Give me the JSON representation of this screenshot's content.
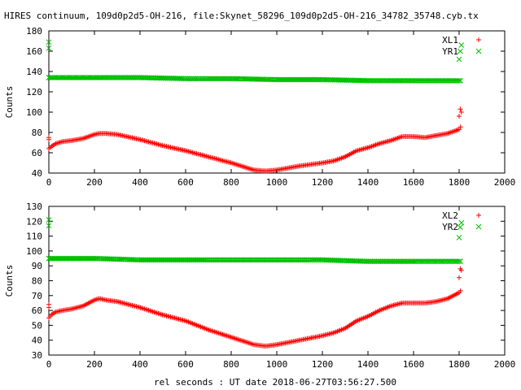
{
  "title": "HIRES continuum, 109d0p2d5-OH-216, file:Skynet_58296_109d0p2d5-OH-216_34782_35748.cyb.tx",
  "xlabel": "rel seconds : UT date 2018-06-27T03:56:27.500",
  "colors": {
    "xl": "#ff0000",
    "yr": "#00c000",
    "axis": "#000000"
  },
  "chart_data": [
    {
      "type": "scatter",
      "xlim": [
        0,
        2000
      ],
      "ylim": [
        40,
        180
      ],
      "xticks": [
        0,
        200,
        400,
        600,
        800,
        1000,
        1200,
        1400,
        1600,
        1800,
        2000
      ],
      "yticks": [
        40,
        60,
        80,
        100,
        120,
        140,
        160,
        180
      ],
      "ylabel": "Counts",
      "legend_position": "top-right",
      "series": [
        {
          "name": "XL1",
          "marker": "+",
          "color": "#ff0000",
          "x": [
            0,
            10,
            30,
            60,
            100,
            150,
            200,
            220,
            250,
            300,
            400,
            500,
            600,
            700,
            800,
            900,
            950,
            1000,
            1100,
            1200,
            1250,
            1300,
            1350,
            1400,
            1450,
            1500,
            1550,
            1600,
            1650,
            1700,
            1750,
            1800,
            1810
          ],
          "y": [
            64,
            66,
            69,
            71,
            72,
            74,
            78,
            79,
            79,
            78,
            73,
            67,
            62,
            56,
            50,
            43,
            42,
            43,
            47,
            50,
            52,
            56,
            62,
            65,
            69,
            72,
            76,
            76,
            75,
            77,
            79,
            83,
            87
          ],
          "outliers": {
            "x": [
              0,
              0,
              1800,
              1805,
              1810
            ],
            "y": [
              73,
              75,
              96,
              103,
              100
            ]
          }
        },
        {
          "name": "YR1",
          "marker": "x",
          "color": "#00c000",
          "x": [
            0,
            200,
            400,
            600,
            800,
            1000,
            1200,
            1400,
            1600,
            1810
          ],
          "y": [
            134,
            134,
            134,
            133,
            133,
            132,
            132,
            131,
            131,
            131
          ],
          "outliers": {
            "x": [
              0,
              0,
              1800,
              1805,
              1810
            ],
            "y": [
              169,
              163,
              152,
              160,
              166
            ]
          }
        }
      ]
    },
    {
      "type": "scatter",
      "xlim": [
        0,
        2000
      ],
      "ylim": [
        30,
        130
      ],
      "xticks": [
        0,
        200,
        400,
        600,
        800,
        1000,
        1200,
        1400,
        1600,
        1800,
        2000
      ],
      "yticks": [
        30,
        40,
        50,
        60,
        70,
        80,
        90,
        100,
        110,
        120,
        130
      ],
      "ylabel": "Counts",
      "legend_position": "top-right",
      "series": [
        {
          "name": "XL2",
          "marker": "+",
          "color": "#ff0000",
          "x": [
            0,
            10,
            30,
            60,
            100,
            150,
            200,
            220,
            250,
            300,
            400,
            500,
            600,
            700,
            800,
            900,
            950,
            1000,
            1100,
            1200,
            1250,
            1300,
            1350,
            1400,
            1450,
            1500,
            1550,
            1600,
            1650,
            1700,
            1750,
            1800,
            1810
          ],
          "y": [
            55,
            57,
            59,
            60,
            61,
            63,
            67,
            68,
            67,
            66,
            62,
            57,
            53,
            47,
            42,
            37,
            36,
            37,
            40,
            43,
            45,
            48,
            53,
            56,
            60,
            63,
            65,
            65,
            65,
            66,
            68,
            72,
            74
          ],
          "outliers": {
            "x": [
              0,
              0,
              1800,
              1805,
              1810
            ],
            "y": [
              62,
              64,
              82,
              88,
              87
            ]
          }
        },
        {
          "name": "YR2",
          "marker": "x",
          "color": "#00c000",
          "x": [
            0,
            200,
            400,
            600,
            800,
            1000,
            1200,
            1400,
            1600,
            1810
          ],
          "y": [
            95,
            95,
            94,
            94,
            94,
            94,
            94,
            93,
            93,
            93
          ],
          "outliers": {
            "x": [
              0,
              0,
              1800,
              1805,
              1810
            ],
            "y": [
              121,
              117,
              109,
              116,
              119
            ]
          }
        }
      ]
    }
  ]
}
